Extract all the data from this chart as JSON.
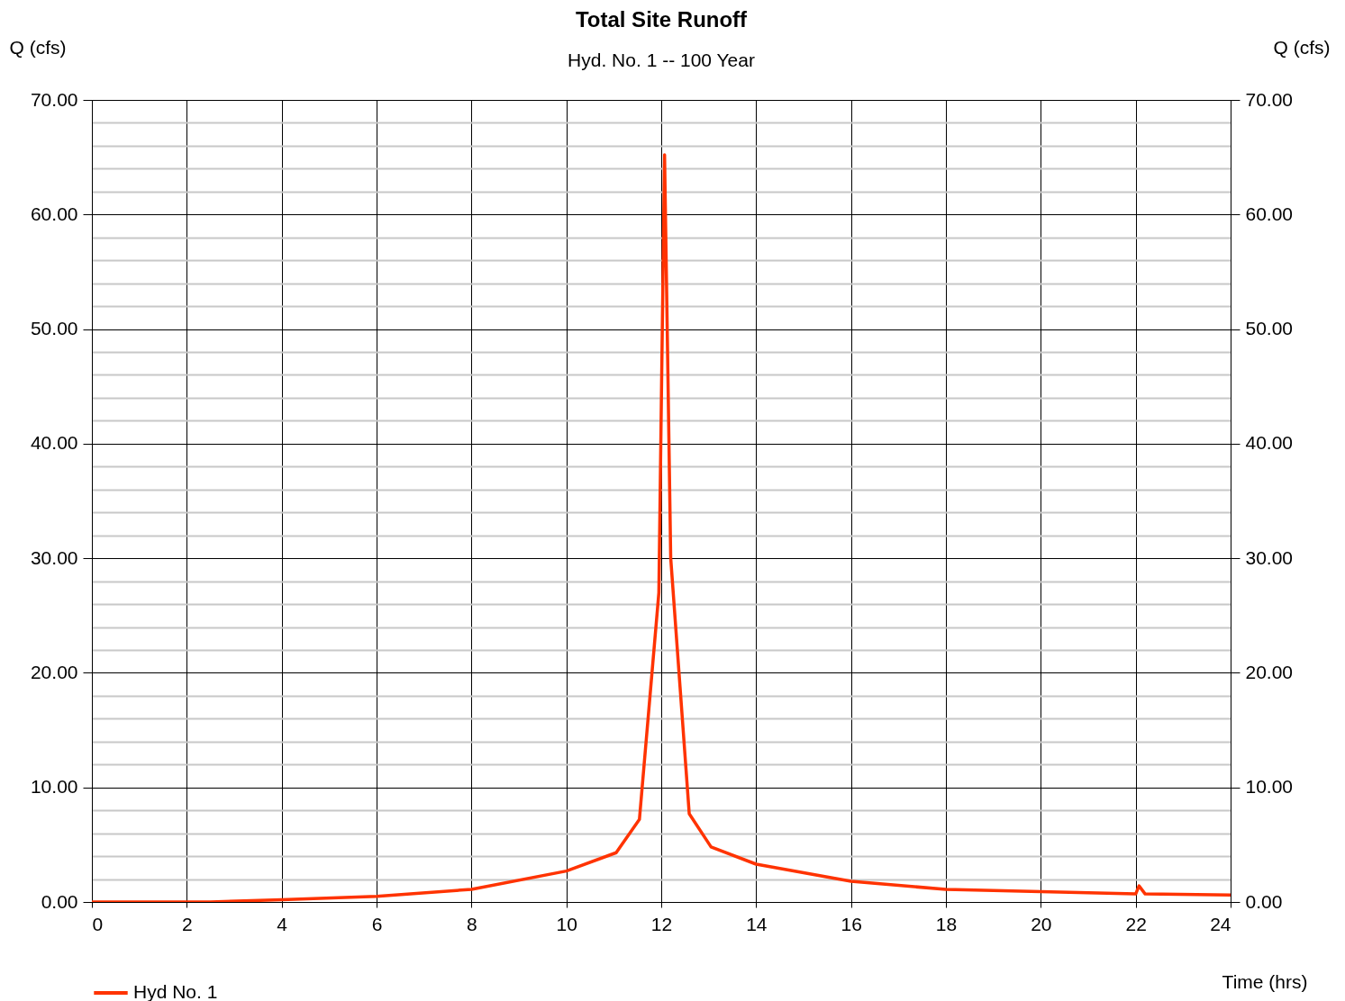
{
  "chart_data": {
    "type": "line",
    "title": "Total Site Runoff",
    "subtitle": "Hyd. No. 1 -- 100 Year",
    "xlabel": "Time (hrs)",
    "ylabel": "Q (cfs)",
    "y2label": "Q (cfs)",
    "x": [
      0,
      2.5,
      4,
      6,
      8,
      10,
      11.05,
      11.54,
      11.95,
      12.07,
      12.2,
      12.59,
      13.05,
      14,
      16,
      18,
      20,
      22,
      22.07,
      22.2,
      24
    ],
    "series": [
      {
        "name": "Hyd No. 1",
        "color": "#ff3300",
        "values": [
          0,
          0,
          0.2,
          0.5,
          1.1,
          2.7,
          4.3,
          7.2,
          27,
          65.2,
          30,
          7.7,
          4.8,
          3.3,
          1.8,
          1.1,
          0.9,
          0.7,
          1.4,
          0.7,
          0.6
        ]
      }
    ],
    "xlim": [
      0,
      24
    ],
    "xticks": [
      0,
      2,
      4,
      6,
      8,
      10,
      12,
      14,
      16,
      18,
      20,
      22,
      24
    ],
    "ylim": [
      0,
      70
    ],
    "yticks": [
      {
        "value": 0,
        "label": "0.00"
      },
      {
        "value": 2,
        "label": null
      },
      {
        "value": 4,
        "label": null
      },
      {
        "value": 6,
        "label": null
      },
      {
        "value": 8,
        "label": null
      },
      {
        "value": 10,
        "label": "10.00"
      },
      {
        "value": 12,
        "label": null
      },
      {
        "value": 14,
        "label": null
      },
      {
        "value": 16,
        "label": null
      },
      {
        "value": 18,
        "label": null
      },
      {
        "value": 20,
        "label": "20.00"
      },
      {
        "value": 22,
        "label": null
      },
      {
        "value": 24,
        "label": null
      },
      {
        "value": 26,
        "label": null
      },
      {
        "value": 28,
        "label": null
      },
      {
        "value": 30,
        "label": "30.00"
      },
      {
        "value": 32,
        "label": null
      },
      {
        "value": 34,
        "label": null
      },
      {
        "value": 36,
        "label": null
      },
      {
        "value": 38,
        "label": null
      },
      {
        "value": 40,
        "label": "40.00"
      },
      {
        "value": 42,
        "label": null
      },
      {
        "value": 44,
        "label": null
      },
      {
        "value": 46,
        "label": null
      },
      {
        "value": 48,
        "label": null
      },
      {
        "value": 50,
        "label": "50.00"
      },
      {
        "value": 52,
        "label": null
      },
      {
        "value": 54,
        "label": null
      },
      {
        "value": 56,
        "label": null
      },
      {
        "value": 58,
        "label": null
      },
      {
        "value": 60,
        "label": "60.00"
      },
      {
        "value": 62,
        "label": null
      },
      {
        "value": 64,
        "label": null
      },
      {
        "value": 66,
        "label": null
      },
      {
        "value": 68,
        "label": null
      },
      {
        "value": 70,
        "label": "70.00"
      }
    ],
    "y2lim": [
      0,
      70
    ],
    "y2ticks": [
      {
        "value": 0,
        "label": "0.00"
      },
      {
        "value": 10,
        "label": "10.00"
      },
      {
        "value": 20,
        "label": "20.00"
      },
      {
        "value": 30,
        "label": "30.00"
      },
      {
        "value": 40,
        "label": "40.00"
      },
      {
        "value": 50,
        "label": "50.00"
      },
      {
        "value": 60,
        "label": "60.00"
      },
      {
        "value": 70,
        "label": "70.00"
      }
    ],
    "grid": true,
    "legend": "bottom left",
    "line_style": "solid",
    "marker": "none"
  }
}
